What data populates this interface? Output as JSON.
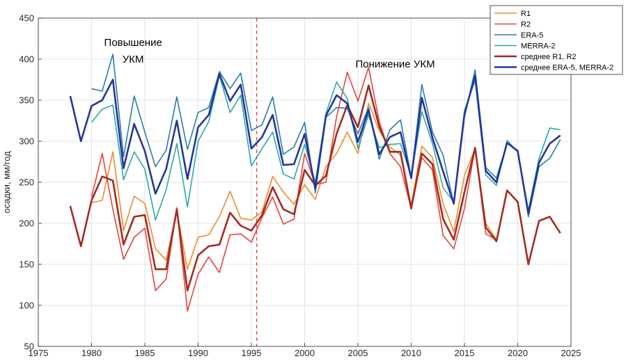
{
  "chart_data": {
    "type": "line",
    "xlabel": "",
    "ylabel": "осадки, мм/год",
    "xlim": [
      1975,
      2025
    ],
    "ylim": [
      50,
      450
    ],
    "xticks": [
      "1975",
      "1980",
      "1985",
      "1990",
      "1995",
      "2000",
      "2005",
      "2010",
      "2015",
      "2020",
      "2025"
    ],
    "yticks": [
      "50",
      "100",
      "150",
      "200",
      "250",
      "300",
      "350",
      "400",
      "450"
    ],
    "grid": true,
    "legend_position": "top-right",
    "vline": {
      "x": 1995.5,
      "color": "#e8413a",
      "style": "dashed"
    },
    "annotations": [
      {
        "lines": [
          "Повышение",
          "УКМ"
        ],
        "x": 1983.9,
        "y": 416
      },
      {
        "lines": [
          "Понижение УКМ"
        ],
        "x": 2008.5,
        "y": 390
      }
    ],
    "series": [
      {
        "name": "R1",
        "color": "#ee8a2a",
        "width": 1.6,
        "x": [
          1980,
          1981,
          1982,
          1983,
          1984,
          1985,
          1986,
          1987,
          1988,
          1989,
          1990,
          1991,
          1992,
          1993,
          1994,
          1995,
          1996,
          1997,
          1998,
          1999,
          2000,
          2001,
          2002,
          2003,
          2004,
          2005,
          2006,
          2007,
          2008,
          2009,
          2010,
          2011,
          2012,
          2013,
          2014,
          2015,
          2016,
          2017,
          2018
        ],
        "y": [
          225,
          228,
          287,
          191,
          233,
          224,
          169,
          155,
          215,
          144,
          183,
          186,
          208,
          239,
          206,
          204,
          214,
          257,
          238,
          223,
          247,
          229,
          269,
          285,
          311,
          285,
          346,
          313,
          293,
          283,
          222,
          294,
          280,
          224,
          190,
          258,
          291,
          200,
          180
        ]
      },
      {
        "name": "R2",
        "color": "#e8413a",
        "width": 1.6,
        "x": [
          1980,
          1981,
          1982,
          1983,
          1984,
          1985,
          1986,
          1987,
          1988,
          1989,
          1990,
          1991,
          1992,
          1993,
          1994,
          1995,
          1996,
          1997,
          1998,
          1999,
          2000,
          2001,
          2002,
          2003,
          2004,
          2005,
          2006,
          2007,
          2008,
          2009,
          2010,
          2011,
          2012,
          2013,
          2014,
          2015,
          2016,
          2017,
          2018
        ],
        "y": [
          232,
          285,
          217,
          156,
          183,
          194,
          118,
          132,
          219,
          93,
          138,
          159,
          140,
          186,
          187,
          177,
          207,
          232,
          199,
          205,
          285,
          247,
          250,
          330,
          384,
          349,
          390,
          324,
          285,
          269,
          218,
          280,
          265,
          185,
          169,
          218,
          292,
          187,
          180
        ]
      },
      {
        "name": "ERA-5",
        "color": "#2a7ab0",
        "width": 1.6,
        "x": [
          1980,
          1981,
          1982,
          1983,
          1984,
          1985,
          1986,
          1987,
          1988,
          1989,
          1990,
          1991,
          1992,
          1993,
          1994,
          1995,
          1996,
          1997,
          1998,
          1999,
          2000,
          2001,
          2002,
          2003,
          2004,
          2005,
          2006,
          2007,
          2008,
          2009,
          2010,
          2011,
          2012,
          2013,
          2014,
          2015,
          2016,
          2017,
          2018,
          2019,
          2020,
          2021,
          2022,
          2023,
          2024
        ],
        "y": [
          364,
          361,
          406,
          281,
          355,
          311,
          269,
          289,
          354,
          290,
          335,
          341,
          385,
          364,
          383,
          313,
          320,
          354,
          284,
          293,
          323,
          237,
          329,
          341,
          340,
          309,
          341,
          278,
          314,
          326,
          256,
          369,
          311,
          283,
          223,
          329,
          387,
          268,
          255,
          298,
          289,
          208,
          269,
          279,
          302
        ]
      },
      {
        "name": "MERRA-2",
        "color": "#2aa8a8",
        "width": 1.6,
        "x": [
          1980,
          1981,
          1982,
          1983,
          1984,
          1985,
          1986,
          1987,
          1988,
          1989,
          1990,
          1991,
          1992,
          1993,
          1994,
          1995,
          1996,
          1997,
          1998,
          1999,
          2000,
          2001,
          2002,
          2003,
          2004,
          2005,
          2006,
          2007,
          2008,
          2009,
          2010,
          2011,
          2012,
          2013,
          2014,
          2015,
          2016,
          2017,
          2018,
          2019,
          2020,
          2021,
          2022,
          2023,
          2024
        ],
        "y": [
          323,
          339,
          344,
          253,
          287,
          266,
          204,
          241,
          297,
          220,
          300,
          324,
          380,
          335,
          356,
          270,
          291,
          311,
          260,
          254,
          296,
          250,
          334,
          372,
          352,
          291,
          332,
          292,
          296,
          297,
          257,
          336,
          297,
          243,
          226,
          337,
          374,
          259,
          246,
          301,
          287,
          216,
          279,
          316,
          314
        ]
      },
      {
        "name": "среднее R1, R2",
        "color": "#a52a20",
        "width": 2.6,
        "x": [
          1978,
          1979,
          1980,
          1981,
          1982,
          1983,
          1984,
          1985,
          1986,
          1987,
          1988,
          1989,
          1990,
          1991,
          1992,
          1993,
          1994,
          1995,
          1996,
          1997,
          1998,
          1999,
          2000,
          2001,
          2002,
          2003,
          2004,
          2005,
          2006,
          2007,
          2008,
          2009,
          2010,
          2011,
          2012,
          2013,
          2014,
          2015,
          2016,
          2017,
          2018,
          2019,
          2020,
          2021,
          2022,
          2023,
          2024
        ],
        "y": [
          221,
          172,
          228,
          257,
          252,
          174,
          208,
          210,
          144,
          144,
          217,
          118,
          161,
          172,
          174,
          213,
          197,
          191,
          210,
          244,
          217,
          211,
          265,
          246,
          258,
          309,
          344,
          317,
          368,
          318,
          287,
          287,
          218,
          285,
          272,
          205,
          180,
          238,
          292,
          195,
          178,
          240,
          226,
          150,
          203,
          208,
          188
        ]
      },
      {
        "name": "среднее ERA-5, MERRA-2",
        "color": "#25359a",
        "width": 2.6,
        "x": [
          1978,
          1979,
          1980,
          1981,
          1982,
          1983,
          1984,
          1985,
          1986,
          1987,
          1988,
          1989,
          1990,
          1991,
          1992,
          1993,
          1994,
          1995,
          1996,
          1997,
          1998,
          1999,
          2000,
          2001,
          2002,
          2003,
          2004,
          2005,
          2006,
          2007,
          2008,
          2009,
          2010,
          2011,
          2012,
          2013,
          2014,
          2015,
          2016,
          2017,
          2018,
          2019,
          2020,
          2021,
          2022,
          2023,
          2024
        ],
        "y": [
          355,
          300,
          343,
          350,
          375,
          267,
          321,
          288,
          236,
          266,
          325,
          254,
          317,
          332,
          382,
          349,
          369,
          291,
          305,
          332,
          271,
          272,
          309,
          243,
          331,
          356,
          346,
          299,
          338,
          284,
          305,
          311,
          255,
          353,
          304,
          263,
          224,
          333,
          380,
          264,
          250,
          298,
          288,
          212,
          274,
          297,
          307
        ]
      }
    ]
  }
}
